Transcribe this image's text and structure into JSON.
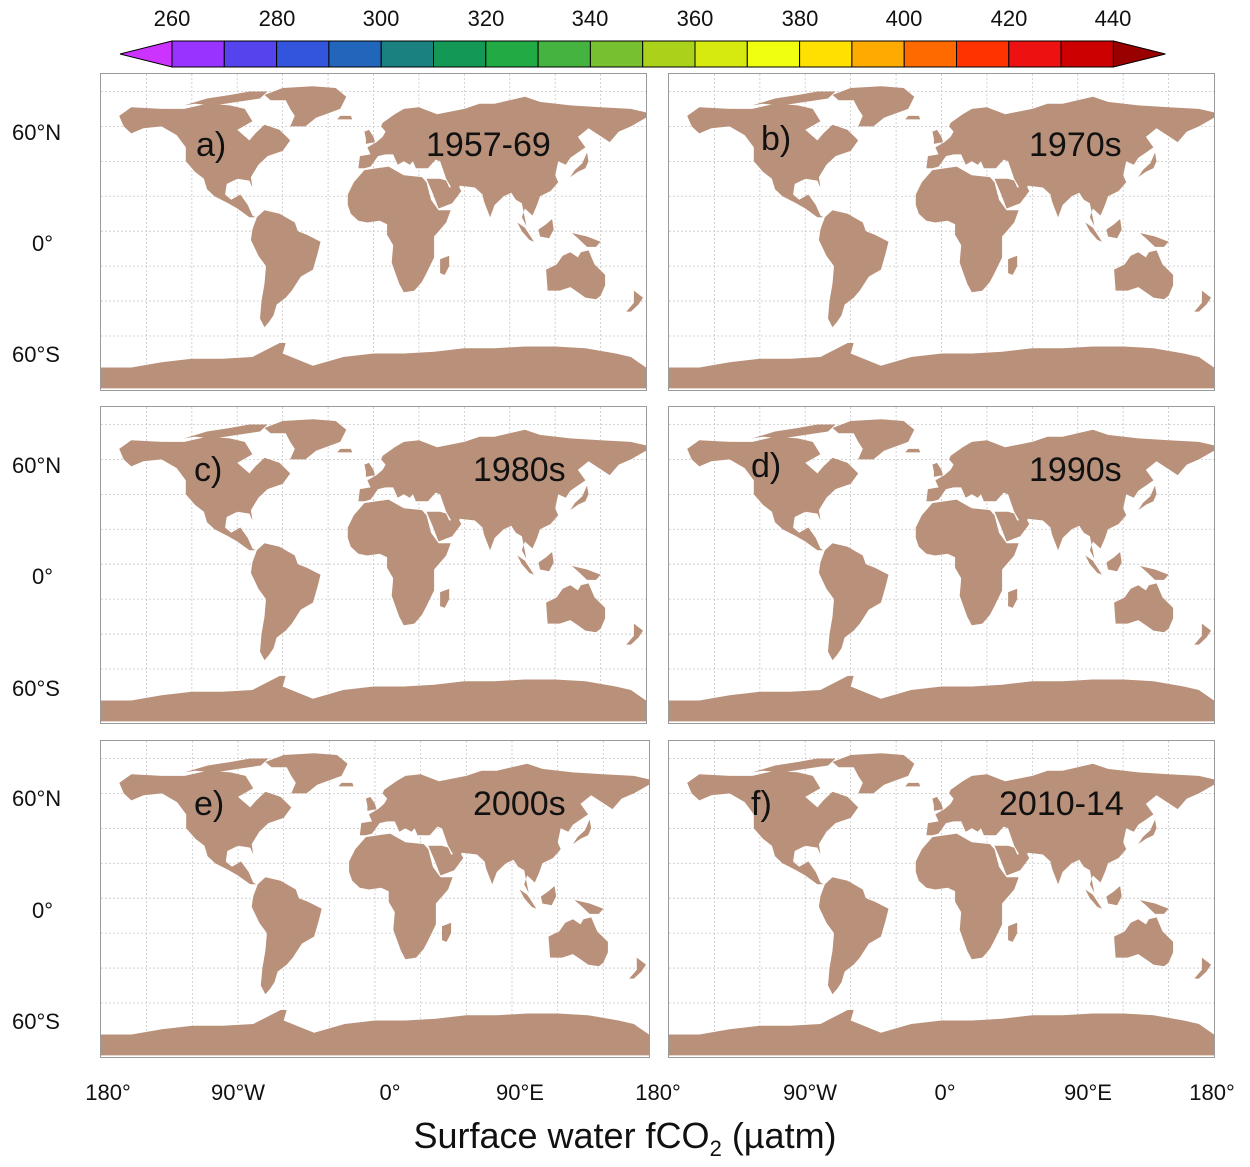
{
  "colorbar": {
    "ticks": [
      "260",
      "280",
      "300",
      "320",
      "340",
      "360",
      "380",
      "400",
      "420",
      "440"
    ],
    "colors": [
      "#cc33ff",
      "#9933ff",
      "#5544ee",
      "#3355dd",
      "#2266bb",
      "#1a8080",
      "#139955",
      "#22aa44",
      "#44b340",
      "#77c030",
      "#aad21a",
      "#d6ea10",
      "#f0ff10",
      "#ffe000",
      "#ffaa00",
      "#ff6a00",
      "#ff3300",
      "#ee1111",
      "#cc0000",
      "#990000"
    ]
  },
  "panels": [
    {
      "letter": "a)",
      "period": "1957-69"
    },
    {
      "letter": "b)",
      "period": "1970s"
    },
    {
      "letter": "c)",
      "period": "1980s"
    },
    {
      "letter": "d)",
      "period": "1990s"
    },
    {
      "letter": "e)",
      "period": "2000s"
    },
    {
      "letter": "f)",
      "period": "2010-14"
    }
  ],
  "lat_labels": [
    "60°N",
    "0°",
    "60°S"
  ],
  "lon_labels": [
    "180°",
    "90°W",
    "0°",
    "90°E",
    "180°"
  ],
  "x_title": "Surface water fCO",
  "x_title_sub": "2",
  "x_title_unit": " (µatm)",
  "colors": {
    "land": "#b9917a",
    "grid": "#c8c8c8"
  }
}
